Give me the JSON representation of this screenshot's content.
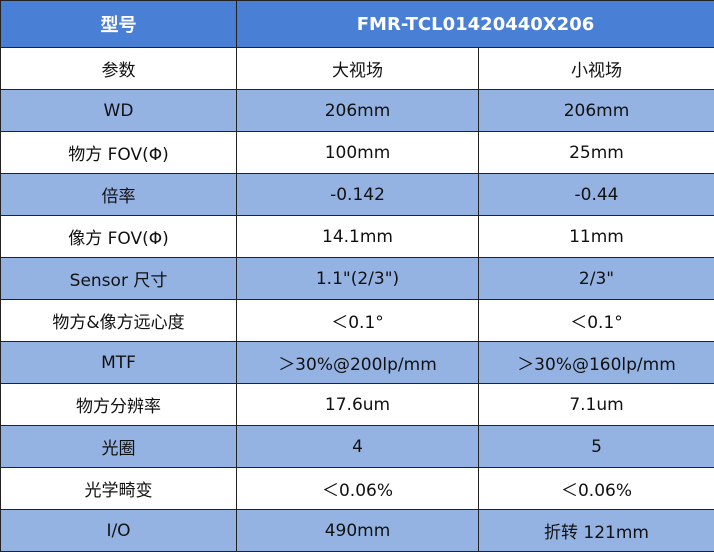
{
  "table": {
    "header": [
      "型号",
      "FMR-TCL01420440X206"
    ],
    "rows": [
      [
        "参数",
        "大视场",
        "小视场"
      ],
      [
        "WD",
        "206mm",
        "206mm"
      ],
      [
        "物方 FOV(Φ)",
        "100mm",
        "25mm"
      ],
      [
        "倍率",
        "-0.142",
        "-0.44"
      ],
      [
        "像方 FOV(Φ)",
        "14.1mm",
        "11mm"
      ],
      [
        "Sensor 尺寸",
        "1.1\"(2/3\")",
        "2/3\""
      ],
      [
        "物方&像方远心度",
        "＜0.1°",
        "＜0.1°"
      ],
      [
        "MTF",
        "＞30%@200lp/mm",
        "＞30%@160lp/mm"
      ],
      [
        "物方分辨率",
        "17.6um",
        "7.1um"
      ],
      [
        "光圈",
        "4",
        "5"
      ],
      [
        "光学畸变",
        "＜0.06%",
        "＜0.06%"
      ],
      [
        "I/O",
        "490mm",
        "折转 121mm"
      ]
    ]
  }
}
